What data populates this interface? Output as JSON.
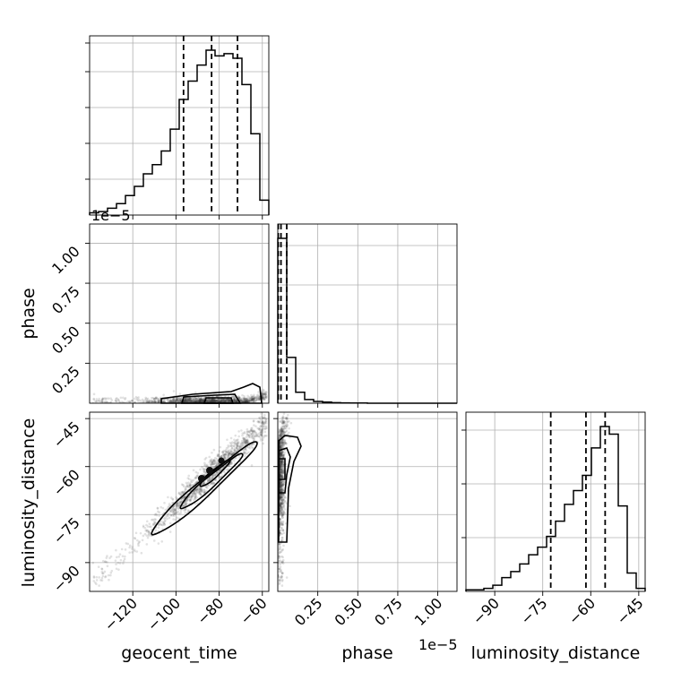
{
  "chart_data": {
    "type": "corner",
    "parameters": [
      "geocent_time",
      "phase",
      "luminosity_distance"
    ],
    "axis_labels": {
      "geocent_time": "geocent_time",
      "phase": "phase",
      "luminosity_distance": "luminosity_distance"
    },
    "offset_text": {
      "phase_y": "1e−5",
      "phase_x": "1e−5"
    },
    "ranges": {
      "geocent_time": [
        -140,
        -57
      ],
      "phase": [
        0.0,
        1.12
      ],
      "luminosity_distance": [
        -99,
        -43
      ]
    },
    "ticks": {
      "geocent_time": {
        "values": [
          -120,
          -100,
          -80,
          -60
        ],
        "labels": [
          "−120",
          "−100",
          "−80",
          "−60"
        ]
      },
      "phase_x": {
        "values": [
          0.25,
          0.5,
          0.75,
          1.0
        ],
        "labels": [
          "0.25",
          "0.50",
          "0.75",
          "1.00"
        ]
      },
      "phase_y": {
        "values": [
          0.25,
          0.5,
          0.75,
          1.0
        ],
        "labels": [
          "0.25",
          "0.50",
          "0.75",
          "1.00"
        ]
      },
      "luminosity_distance_x": {
        "values": [
          -90,
          -75,
          -60,
          -45
        ],
        "labels": [
          "−90",
          "−75",
          "−60",
          "−45"
        ]
      },
      "luminosity_distance_y": {
        "values": [
          -90,
          -75,
          -60,
          -45
        ],
        "labels": [
          "−90",
          "−75",
          "−60",
          "−45"
        ]
      }
    },
    "histograms": {
      "geocent_time": {
        "bin_edges": [
          -140,
          -135.85,
          -131.7,
          -127.55,
          -123.4,
          -119.25,
          -115.1,
          -110.95,
          -106.8,
          -102.65,
          -98.5,
          -94.35,
          -90.2,
          -86.05,
          -81.9,
          -77.75,
          -73.6,
          -69.45,
          -65.3,
          -61.15,
          -57
        ],
        "counts": [
          2,
          3,
          6,
          10,
          17,
          25,
          36,
          44,
          56,
          75,
          101,
          117,
          131,
          144,
          139,
          141,
          137,
          114,
          71,
          13
        ],
        "quantiles": [
          -96.5,
          -83.5,
          -71.5
        ]
      },
      "phase": {
        "bin_edges": [
          0.0,
          0.056,
          0.112,
          0.168,
          0.224,
          0.28,
          0.336,
          0.392,
          0.448,
          0.504,
          0.56,
          0.616,
          0.672,
          0.728,
          0.784,
          0.84,
          0.896,
          0.952,
          1.008,
          1.064,
          1.12
        ],
        "counts": [
          900,
          250,
          60,
          20,
          10,
          6,
          3,
          2,
          1,
          1,
          0,
          0,
          0,
          0,
          0,
          0,
          0,
          0,
          0,
          0
        ],
        "quantiles": [
          0.003,
          0.02,
          0.056
        ]
      },
      "luminosity_distance": {
        "bin_edges": [
          -99,
          -96.2,
          -93.4,
          -90.6,
          -87.8,
          -85,
          -82.2,
          -79.4,
          -76.6,
          -73.8,
          -71,
          -68.2,
          -65.4,
          -62.6,
          -59.8,
          -57,
          -54.2,
          -51.4,
          -48.6,
          -45.8,
          -43
        ],
        "counts": [
          1,
          1,
          2,
          4,
          9,
          13,
          18,
          24,
          29,
          36,
          46,
          57,
          66,
          76,
          94,
          108,
          103,
          56,
          12,
          2
        ],
        "quantiles": [
          -72.5,
          -61.5,
          -55.5
        ]
      }
    },
    "scatter": {
      "geocent_time_vs_phase": {
        "x": "geocent_time",
        "y": "phase",
        "levels": 3
      },
      "geocent_time_vs_luminosity_distance": {
        "x": "geocent_time",
        "y": "luminosity_distance",
        "levels": 3
      },
      "phase_vs_luminosity_distance": {
        "x": "phase",
        "y": "luminosity_distance",
        "levels": 3
      }
    },
    "colors": {
      "lines": "#000000",
      "points": "#333333",
      "grid": "#b0b0b0"
    },
    "grid": true
  }
}
